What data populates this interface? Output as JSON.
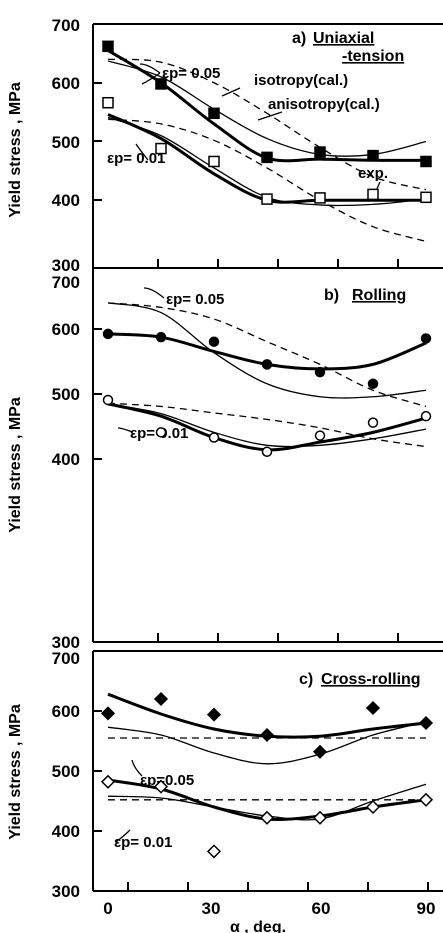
{
  "chart_data": [
    {
      "type": "scatter",
      "id": "a",
      "title_prefix": "a)",
      "title_line1": "Uniaxial",
      "title_line2": "-tension",
      "ylabel": "Yield stress , MPa",
      "ylim": [
        300,
        700
      ],
      "xlim": [
        0,
        90
      ],
      "y_ticks": [
        300,
        400,
        500,
        600,
        700
      ],
      "annotations": {
        "ep_high": "εp= 0.05",
        "ep_low": "εp= 0.01",
        "isotropy": "isotropy(cal.)",
        "anisotropy": "anisotropy(cal.)",
        "exp": "exp."
      },
      "series": [
        {
          "name": "exp. εp=0.05",
          "kind": "points",
          "marker": "filled-square",
          "x": [
            0,
            15,
            30,
            45,
            60,
            75,
            90
          ],
          "values": [
            662,
            598,
            548,
            473,
            482,
            476,
            466
          ]
        },
        {
          "name": "exp. εp=0.01",
          "kind": "points",
          "marker": "open-square",
          "x": [
            0,
            15,
            30,
            45,
            60,
            75,
            90
          ],
          "values": [
            566,
            488,
            466,
            402,
            404,
            410,
            405
          ]
        },
        {
          "name": "",
          "kind": "thick",
          "x": [
            0,
            15,
            30,
            45,
            60,
            75,
            90
          ],
          "values": [
            655,
            600,
            530,
            472,
            470,
            468,
            468
          ]
        },
        {
          "name": "",
          "kind": "thin",
          "x": [
            0,
            15,
            30,
            45,
            60,
            75,
            90
          ],
          "values": [
            637,
            610,
            555,
            505,
            478,
            478,
            500
          ]
        },
        {
          "name": "",
          "kind": "dashed",
          "x": [
            0,
            15,
            30,
            45,
            60,
            75,
            90
          ],
          "values": [
            640,
            635,
            600,
            548,
            490,
            440,
            418
          ]
        },
        {
          "name": "",
          "kind": "thick",
          "x": [
            0,
            15,
            30,
            45,
            60,
            75,
            90
          ],
          "values": [
            546,
            505,
            445,
            400,
            400,
            400,
            400
          ]
        },
        {
          "name": "",
          "kind": "thin",
          "x": [
            0,
            15,
            30,
            45,
            60,
            75,
            90
          ],
          "values": [
            541,
            510,
            455,
            405,
            392,
            393,
            402
          ]
        },
        {
          "name": "",
          "kind": "dashed",
          "x": [
            0,
            15,
            30,
            45,
            60,
            75,
            90
          ],
          "values": [
            538,
            530,
            502,
            455,
            400,
            355,
            330
          ]
        }
      ]
    },
    {
      "type": "scatter",
      "id": "b",
      "title_prefix": "b)",
      "title_line1": "Rolling",
      "ylabel": "Yield stress , MPa",
      "ylim": [
        300,
        700
      ],
      "xlim": [
        0,
        90
      ],
      "y_ticks": [
        300,
        400,
        500,
        600,
        700
      ],
      "annotations": {
        "ep_high": "εp= 0.05",
        "ep_low": "εp= 0.01"
      },
      "series": [
        {
          "name": "exp. εp=0.05",
          "kind": "points",
          "marker": "filled-circle",
          "x": [
            0,
            15,
            30,
            45,
            60,
            75,
            90
          ],
          "values": [
            592,
            587,
            580,
            545,
            533,
            515,
            585
          ]
        },
        {
          "name": "exp. εp=0.01",
          "kind": "points",
          "marker": "open-circle",
          "x": [
            0,
            15,
            30,
            45,
            60,
            75,
            90
          ],
          "values": [
            490,
            440,
            432,
            410,
            435,
            455,
            465
          ]
        },
        {
          "name": "",
          "kind": "thick",
          "x": [
            0,
            15,
            30,
            45,
            60,
            75,
            90
          ],
          "values": [
            592,
            587,
            565,
            545,
            538,
            545,
            578
          ]
        },
        {
          "name": "",
          "kind": "thin",
          "x": [
            0,
            15,
            30,
            45,
            60,
            75,
            90
          ],
          "values": [
            640,
            625,
            563,
            515,
            495,
            495,
            505
          ]
        },
        {
          "name": "",
          "kind": "dashed",
          "x": [
            0,
            15,
            30,
            45,
            60,
            75,
            90
          ],
          "values": [
            640,
            633,
            615,
            580,
            545,
            505,
            480
          ]
        },
        {
          "name": "",
          "kind": "thick",
          "x": [
            0,
            15,
            30,
            45,
            60,
            75,
            90
          ],
          "values": [
            484,
            465,
            432,
            413,
            425,
            440,
            462
          ]
        },
        {
          "name": "",
          "kind": "thin",
          "x": [
            0,
            15,
            30,
            45,
            60,
            75,
            90
          ],
          "values": [
            484,
            469,
            440,
            420,
            420,
            430,
            445
          ]
        },
        {
          "name": "",
          "kind": "dashed",
          "x": [
            0,
            15,
            30,
            45,
            60,
            75,
            90
          ],
          "values": [
            485,
            480,
            470,
            460,
            447,
            430,
            418
          ]
        }
      ]
    },
    {
      "type": "scatter",
      "id": "c",
      "title_prefix": "c)",
      "title_line1": "Cross-rolling",
      "ylabel": "Yield stress , MPa",
      "xlabel": "α , deg.",
      "ylim": [
        300,
        700
      ],
      "xlim": [
        0,
        90
      ],
      "y_ticks": [
        300,
        400,
        500,
        600,
        700
      ],
      "x_ticks": [
        0,
        30,
        60,
        90
      ],
      "annotations": {
        "ep_high": "εp=0.05",
        "ep_low": "εp= 0.01"
      },
      "series": [
        {
          "name": "exp. εp=0.05",
          "kind": "points",
          "marker": "filled-diamond",
          "x": [
            0,
            15,
            30,
            45,
            60,
            75,
            90
          ],
          "values": [
            596,
            620,
            594,
            560,
            532,
            605,
            580
          ]
        },
        {
          "name": "exp. εp=0.01",
          "kind": "points",
          "marker": "open-diamond",
          "x": [
            0,
            15,
            30,
            45,
            60,
            75,
            90
          ],
          "values": [
            482,
            474,
            366,
            422,
            422,
            440,
            452
          ]
        },
        {
          "name": "",
          "kind": "thick",
          "x": [
            0,
            15,
            30,
            45,
            60,
            75,
            90
          ],
          "values": [
            628,
            595,
            570,
            558,
            558,
            570,
            580
          ]
        },
        {
          "name": "",
          "kind": "thin",
          "x": [
            0,
            15,
            30,
            45,
            60,
            75,
            90
          ],
          "values": [
            573,
            560,
            530,
            512,
            528,
            560,
            582
          ]
        },
        {
          "name": "",
          "kind": "dashed",
          "x": [
            0,
            90
          ],
          "values": [
            555,
            555
          ]
        },
        {
          "name": "",
          "kind": "thick",
          "x": [
            0,
            15,
            30,
            45,
            60,
            75,
            90
          ],
          "values": [
            485,
            470,
            440,
            420,
            425,
            440,
            452
          ]
        },
        {
          "name": "",
          "kind": "thin",
          "x": [
            0,
            15,
            30,
            45,
            60,
            75,
            90
          ],
          "values": [
            458,
            455,
            440,
            425,
            420,
            450,
            478
          ]
        },
        {
          "name": "",
          "kind": "dashed",
          "x": [
            0,
            90
          ],
          "values": [
            452,
            452
          ]
        }
      ]
    }
  ]
}
